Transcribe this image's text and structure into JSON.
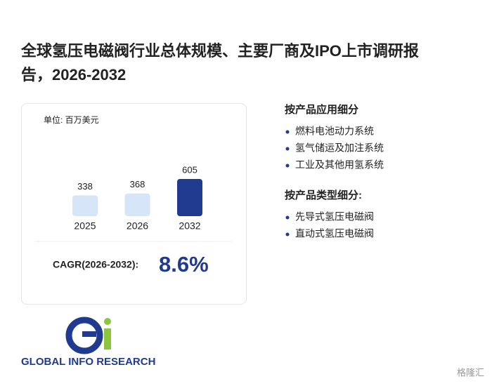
{
  "title": [
    "全球氢压电磁阀行业总体规模、主要厂商及IPO上市调研报",
    "告，2026-2032"
  ],
  "unit": "单位: 百万美元",
  "chart_data": {
    "type": "bar",
    "categories": [
      "2025",
      "2026",
      "2032"
    ],
    "values": [
      338,
      368,
      605
    ],
    "colors": [
      "#d6e6f8",
      "#d6e6f8",
      "#1f3a8f"
    ]
  },
  "cagr": {
    "label": "CAGR(2026-2032):",
    "value": "8.6%"
  },
  "sections": [
    {
      "heading": "按产品应用细分",
      "items": [
        "燃料电池动力系统",
        "氢气储运及加注系统",
        "工业及其他用氢系统"
      ]
    },
    {
      "heading": "按产品类型细分:",
      "items": [
        "先导式氢压电磁阀",
        "直动式氢压电磁阀"
      ]
    }
  ],
  "logo": "GLOBAL INFO RESEARCH",
  "footer_mark": "格隆汇"
}
